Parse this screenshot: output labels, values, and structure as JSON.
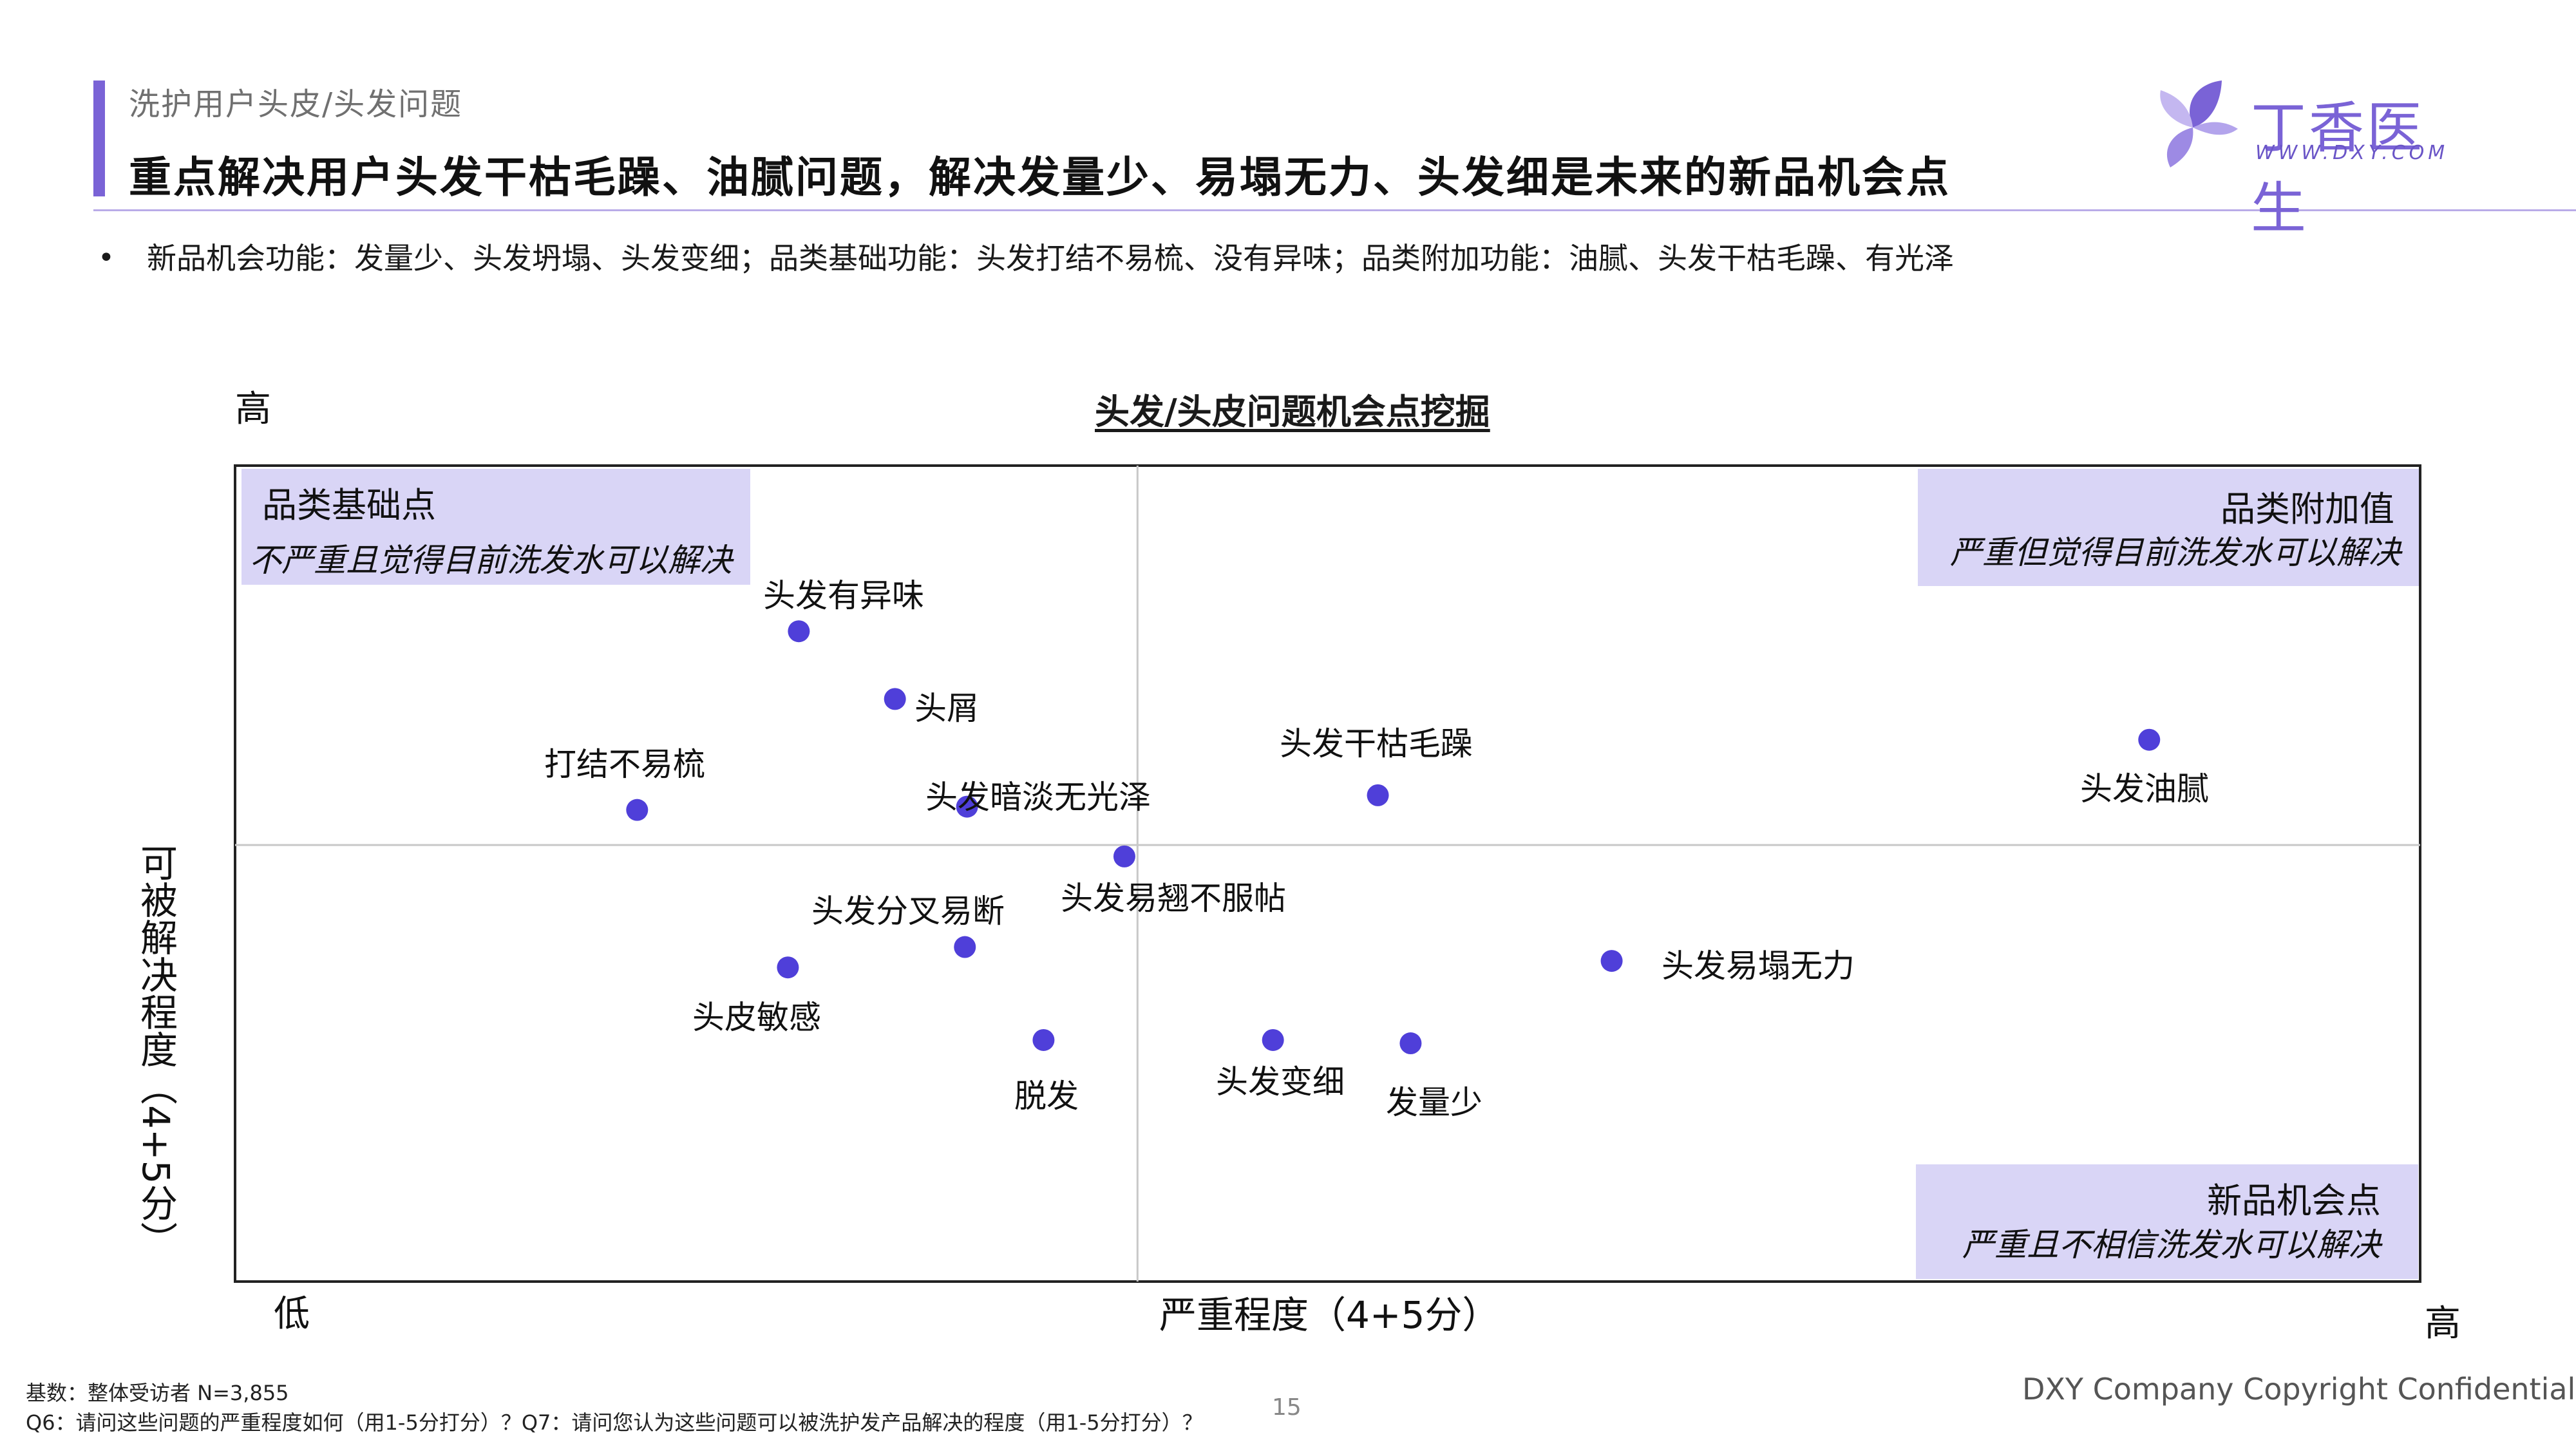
{
  "header": {
    "section": "洗护用户头皮/头发问题",
    "headline": "重点解决用户头发干枯毛躁、油腻问题，解决发量少、易塌无力、头发细是未来的新品机会点"
  },
  "logo": {
    "name": "丁香医生",
    "url": "WWW.DXY.COM",
    "icon": "clove-flower-icon"
  },
  "bullet": "新品机会功能：发量少、头发坍塌、头发变细；品类基础功能：头发打结不易梳、没有异味；品类附加功能：油腻、头发干枯毛躁、有光泽",
  "chart_data": {
    "type": "scatter",
    "title": "头发/头皮问题机会点挖掘",
    "xlabel": "严重程度（4+5分）",
    "ylabel": "可被解决程度（4+5分）",
    "x_low": "低",
    "x_high": "高",
    "y_high": "高",
    "point_color": "#4f3fd9",
    "quadrants": [
      {
        "title": "品类基础点",
        "subtitle": "不严重且觉得目前洗发水可以解决",
        "position": "top-left"
      },
      {
        "title": "品类附加值",
        "subtitle": "严重但觉得目前洗发水可以解决",
        "position": "top-right"
      },
      {
        "title": "新品机会点",
        "subtitle": "严重且不相信洗发水可以解决",
        "position": "bottom-right"
      }
    ],
    "points": [
      {
        "label": "头发有异味",
        "x": 0.258,
        "y": 0.797
      },
      {
        "label": "头屑",
        "x": 0.302,
        "y": 0.714
      },
      {
        "label": "打结不易梳",
        "x": 0.184,
        "y": 0.578
      },
      {
        "label": "头发暗淡无光泽",
        "x": 0.335,
        "y": 0.582
      },
      {
        "label": "头发干枯毛躁",
        "x": 0.523,
        "y": 0.596
      },
      {
        "label": "头发油腻",
        "x": 0.876,
        "y": 0.664
      },
      {
        "label": "头发易翘不服帖",
        "x": 0.407,
        "y": 0.521
      },
      {
        "label": "头发分叉易断",
        "x": 0.334,
        "y": 0.41
      },
      {
        "label": "头皮敏感",
        "x": 0.253,
        "y": 0.385
      },
      {
        "label": "头发易塌无力",
        "x": 0.63,
        "y": 0.393
      },
      {
        "label": "脱发",
        "x": 0.37,
        "y": 0.296
      },
      {
        "label": "头发变细",
        "x": 0.475,
        "y": 0.296
      },
      {
        "label": "发量少",
        "x": 0.538,
        "y": 0.292
      }
    ]
  },
  "footer": {
    "base": "基数：整体受访者 N=3,855",
    "question": "Q6：请问这些问题的严重程度如何（用1-5分打分）？Q7：请问您认为这些问题可以被洗护发产品解决的程度（用1-5分打分）？",
    "page": "15",
    "copyright": "DXY Company Copyright Confidential"
  }
}
